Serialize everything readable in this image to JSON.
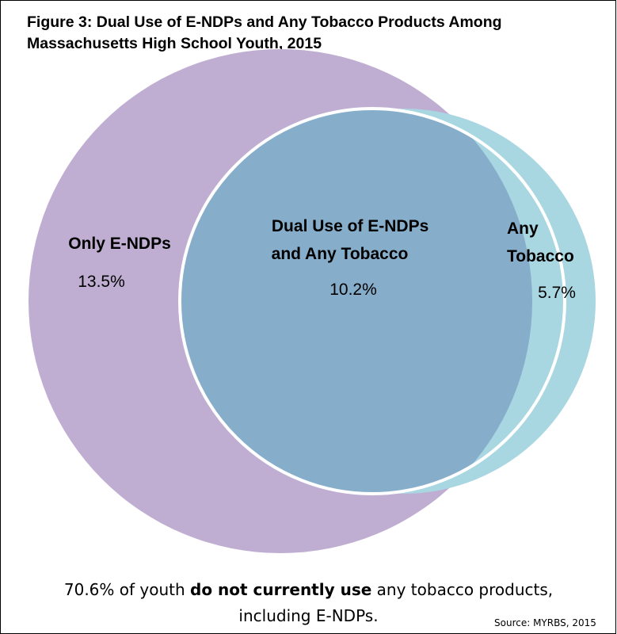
{
  "chart_data": {
    "type": "venn",
    "title_lines": [
      "Figure 3: Dual Use of E-NDPs and Any Tobacco Products Among",
      "Massachusetts High School Youth, 2015"
    ],
    "sets": [
      {
        "label_lines": [
          "Only E-NDPs"
        ],
        "value": 13.5,
        "value_text": "13.5%",
        "color": "#bfaed2"
      },
      {
        "label_lines": [
          "Dual Use of E-NDPs",
          "and Any Tobacco"
        ],
        "value": 10.2,
        "value_text": "10.2%",
        "color": "#86adca"
      },
      {
        "label_lines": [
          "Any",
          "Tobacco"
        ],
        "value": 5.7,
        "value_text": "5.7%",
        "color": "#a8d6e1"
      }
    ],
    "footnote": {
      "before": "70.6% of youth ",
      "bold": "do not currently use",
      "after": " any tobacco products,",
      "line2": "including E-NDPs."
    },
    "source": "Source: MYRBS, 2015"
  }
}
